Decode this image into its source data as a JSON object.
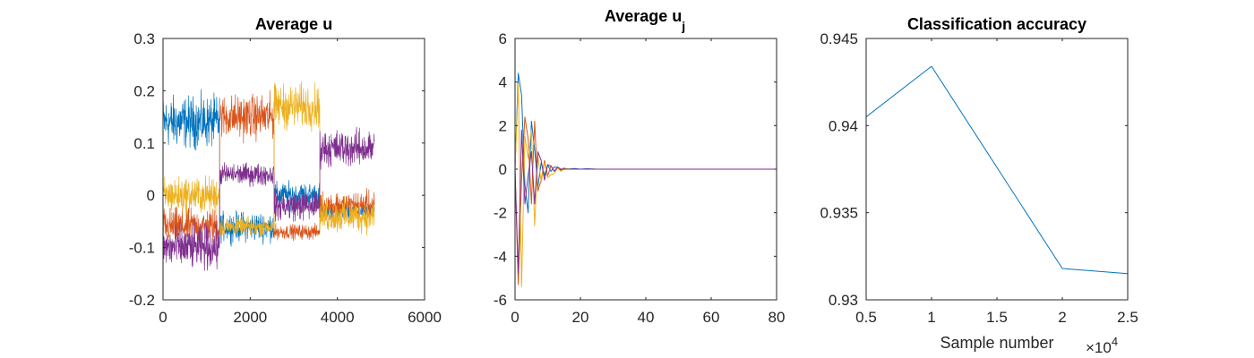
{
  "chart_data": [
    {
      "type": "line",
      "title": "Average u",
      "xlim": [
        0,
        6000
      ],
      "ylim": [
        -0.2,
        0.3
      ],
      "x_ticks": [
        "0",
        "2000",
        "4000",
        "6000"
      ],
      "y_ticks": [
        "-0.2",
        "-0.1",
        "0",
        "0.1",
        "0.2",
        "0.3"
      ],
      "grid": false,
      "series": [
        {
          "color": "#0072BD",
          "segments": [
            {
              "x0": 0,
              "x1": 1300,
              "mean": 0.14,
              "amp": 0.07
            },
            {
              "x0": 1300,
              "x1": 2550,
              "mean": -0.06,
              "amp": 0.04
            },
            {
              "x0": 2550,
              "x1": 3600,
              "mean": 0.0,
              "amp": 0.035
            },
            {
              "x0": 3600,
              "x1": 4850,
              "mean": -0.03,
              "amp": 0.02
            }
          ]
        },
        {
          "color": "#D95319",
          "segments": [
            {
              "x0": 0,
              "x1": 1300,
              "mean": -0.06,
              "amp": 0.05
            },
            {
              "x0": 1300,
              "x1": 2550,
              "mean": 0.15,
              "amp": 0.06
            },
            {
              "x0": 2550,
              "x1": 3600,
              "mean": -0.07,
              "amp": 0.02
            },
            {
              "x0": 3600,
              "x1": 4850,
              "mean": -0.02,
              "amp": 0.04
            }
          ]
        },
        {
          "color": "#EDB120",
          "segments": [
            {
              "x0": 0,
              "x1": 1300,
              "mean": 0.0,
              "amp": 0.05
            },
            {
              "x0": 1300,
              "x1": 2550,
              "mean": -0.06,
              "amp": 0.025
            },
            {
              "x0": 2550,
              "x1": 3600,
              "mean": 0.17,
              "amp": 0.06
            },
            {
              "x0": 3600,
              "x1": 4850,
              "mean": -0.04,
              "amp": 0.045
            }
          ]
        },
        {
          "color": "#7E2F8E",
          "segments": [
            {
              "x0": 0,
              "x1": 1300,
              "mean": -0.1,
              "amp": 0.06
            },
            {
              "x0": 1300,
              "x1": 2550,
              "mean": 0.04,
              "amp": 0.03
            },
            {
              "x0": 2550,
              "x1": 3600,
              "mean": -0.02,
              "amp": 0.04
            },
            {
              "x0": 3600,
              "x1": 4850,
              "mean": 0.09,
              "amp": 0.05
            }
          ]
        }
      ]
    },
    {
      "type": "line",
      "title_main": "Average u",
      "title_subscript": "j",
      "xlim": [
        0,
        80
      ],
      "ylim": [
        -6,
        6
      ],
      "x_ticks": [
        "0",
        "20",
        "40",
        "60",
        "80"
      ],
      "y_ticks": [
        "-6",
        "-4",
        "-2",
        "0",
        "2",
        "4",
        "6"
      ],
      "grid": false,
      "series": [
        {
          "color": "#0072BD",
          "x": [
            0,
            1,
            2,
            3,
            4,
            5,
            6,
            7,
            8,
            9,
            10,
            11,
            12,
            13,
            14,
            15,
            16,
            18,
            20,
            22,
            25,
            30,
            40,
            50,
            60,
            70,
            80
          ],
          "y": [
            0,
            4.4,
            3.4,
            -0.7,
            -2.0,
            2.2,
            0.9,
            -0.8,
            0.3,
            -0.3,
            0.2,
            -0.1,
            0.1,
            0.08,
            -0.05,
            0.05,
            0.0,
            0.03,
            0.0,
            0.02,
            0.0,
            0.0,
            0.0,
            0.0,
            0.0,
            0.0,
            0.0
          ]
        },
        {
          "color": "#D95319",
          "x": [
            0,
            1,
            2,
            3,
            4,
            5,
            6,
            7,
            8,
            9,
            10,
            11,
            12,
            13,
            14,
            15,
            16,
            18,
            20,
            22,
            25,
            30,
            40,
            50,
            60,
            70,
            80
          ],
          "y": [
            0,
            -5.3,
            -0.5,
            2.4,
            1.4,
            -1.6,
            2.2,
            -1.0,
            -0.5,
            0.4,
            -0.3,
            0.15,
            -0.1,
            0.05,
            0.0,
            0.02,
            0.0,
            0.0,
            0.0,
            0.0,
            0.0,
            0.0,
            0.0,
            0.0,
            0.0,
            0.0,
            0.0
          ]
        },
        {
          "color": "#EDB120",
          "x": [
            0,
            1,
            2,
            3,
            4,
            5,
            6,
            7,
            8,
            9,
            10,
            11,
            12,
            13,
            14,
            15,
            16,
            18,
            20,
            22,
            25,
            30,
            40,
            50,
            60,
            70,
            80
          ],
          "y": [
            0,
            3.9,
            -5.4,
            1.5,
            0.5,
            1.8,
            -2.6,
            0.6,
            -0.6,
            0.3,
            -0.4,
            -0.25,
            -0.2,
            0.05,
            -0.1,
            0.0,
            0.02,
            0.0,
            0.0,
            0.0,
            0.0,
            0.0,
            0.0,
            0.0,
            0.0,
            0.0,
            0.0
          ]
        },
        {
          "color": "#7E2F8E",
          "x": [
            0,
            1,
            2,
            3,
            4,
            5,
            6,
            7,
            8,
            9,
            10,
            11,
            12,
            13,
            14,
            15,
            16,
            18,
            20,
            22,
            25,
            30,
            40,
            50,
            60,
            70,
            80
          ],
          "y": [
            0,
            -4.8,
            1.8,
            -1.6,
            -0.3,
            0.8,
            -1.6,
            0.8,
            0.4,
            -0.5,
            0.2,
            0.15,
            -0.1,
            0.1,
            0.0,
            0.0,
            0.0,
            0.0,
            0.0,
            0.0,
            0.0,
            0.0,
            0.0,
            0.0,
            0.0,
            0.0,
            0.0
          ]
        }
      ]
    },
    {
      "type": "line",
      "title": "Classification accuracy",
      "xlabel": "Sample number",
      "x_exponent_base": "×10",
      "x_exponent_power": "4",
      "xlim": [
        0.5,
        2.5
      ],
      "ylim": [
        0.93,
        0.945
      ],
      "x_ticks": [
        "0.5",
        "1",
        "1.5",
        "2",
        "2.5"
      ],
      "y_ticks": [
        "0.93",
        "0.935",
        "0.94",
        "0.945"
      ],
      "grid": false,
      "series": [
        {
          "color": "#0072BD",
          "x": [
            0.5,
            1,
            2,
            2.5
          ],
          "y": [
            0.9405,
            0.9434,
            0.9318,
            0.9315
          ]
        }
      ]
    }
  ]
}
